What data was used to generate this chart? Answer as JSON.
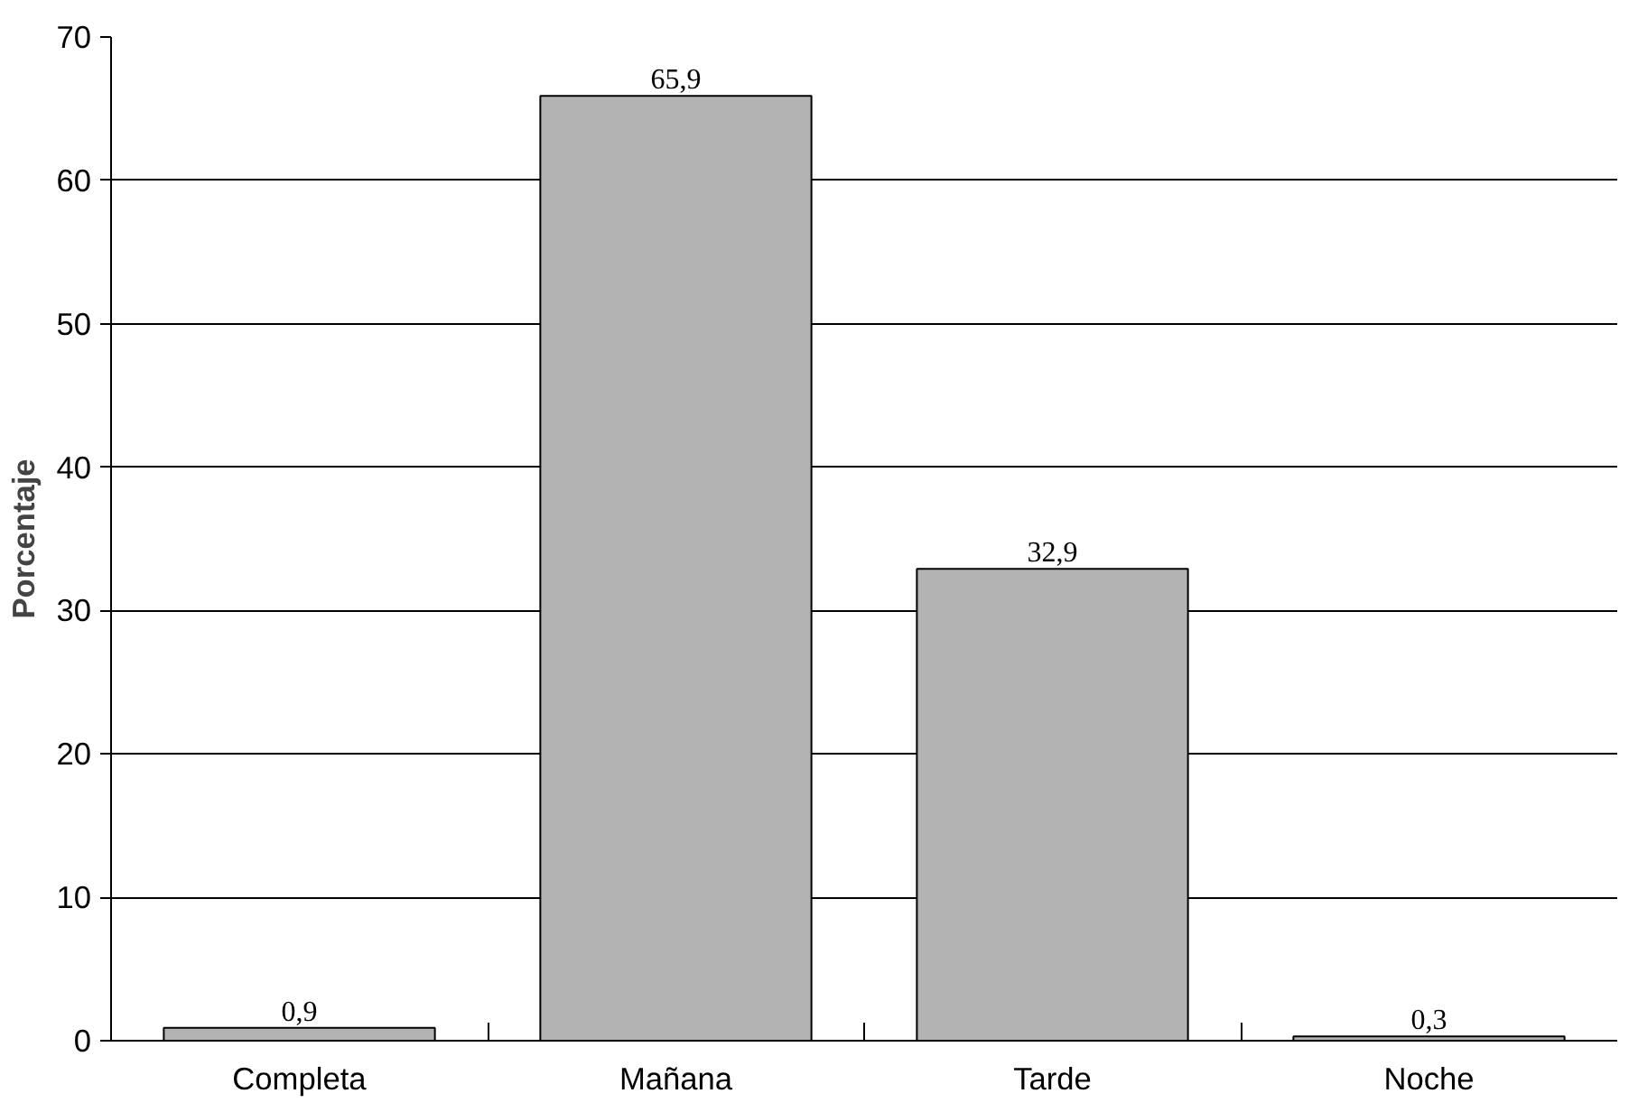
{
  "chart_data": {
    "type": "bar",
    "ylabel": "Porcentaje",
    "categories": [
      "Completa",
      "Mañana",
      "Tarde",
      "Noche"
    ],
    "values": [
      0.9,
      65.9,
      32.9,
      0.3
    ],
    "color": "#b3b3b3",
    "value_labels": [
      "0,9",
      "65,9",
      "32,9",
      "0,3"
    ],
    "ylim": [
      0,
      70
    ],
    "yticks": [
      0,
      10,
      20,
      30,
      40,
      50,
      60,
      70
    ],
    "grid": "y"
  }
}
